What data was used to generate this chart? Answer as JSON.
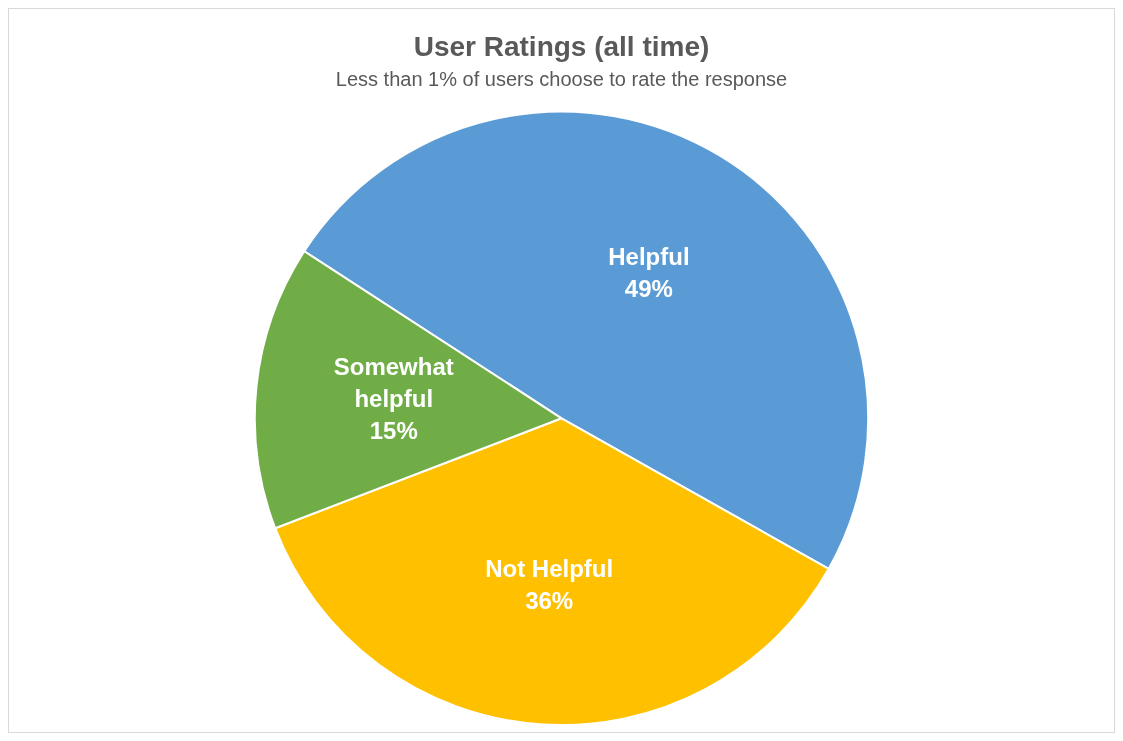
{
  "chart_data": {
    "type": "pie",
    "title": "User Ratings (all time)",
    "subtitle": "Less than 1% of users choose to rate the response",
    "categories": [
      "Helpful",
      "Not Helpful",
      "Somewhat helpful"
    ],
    "values": [
      49,
      36,
      15
    ],
    "colors": [
      "#5b9bd5",
      "#ffc000",
      "#70ad47"
    ],
    "value_labels": [
      "49%",
      "36%",
      "15%"
    ],
    "legend": false
  }
}
